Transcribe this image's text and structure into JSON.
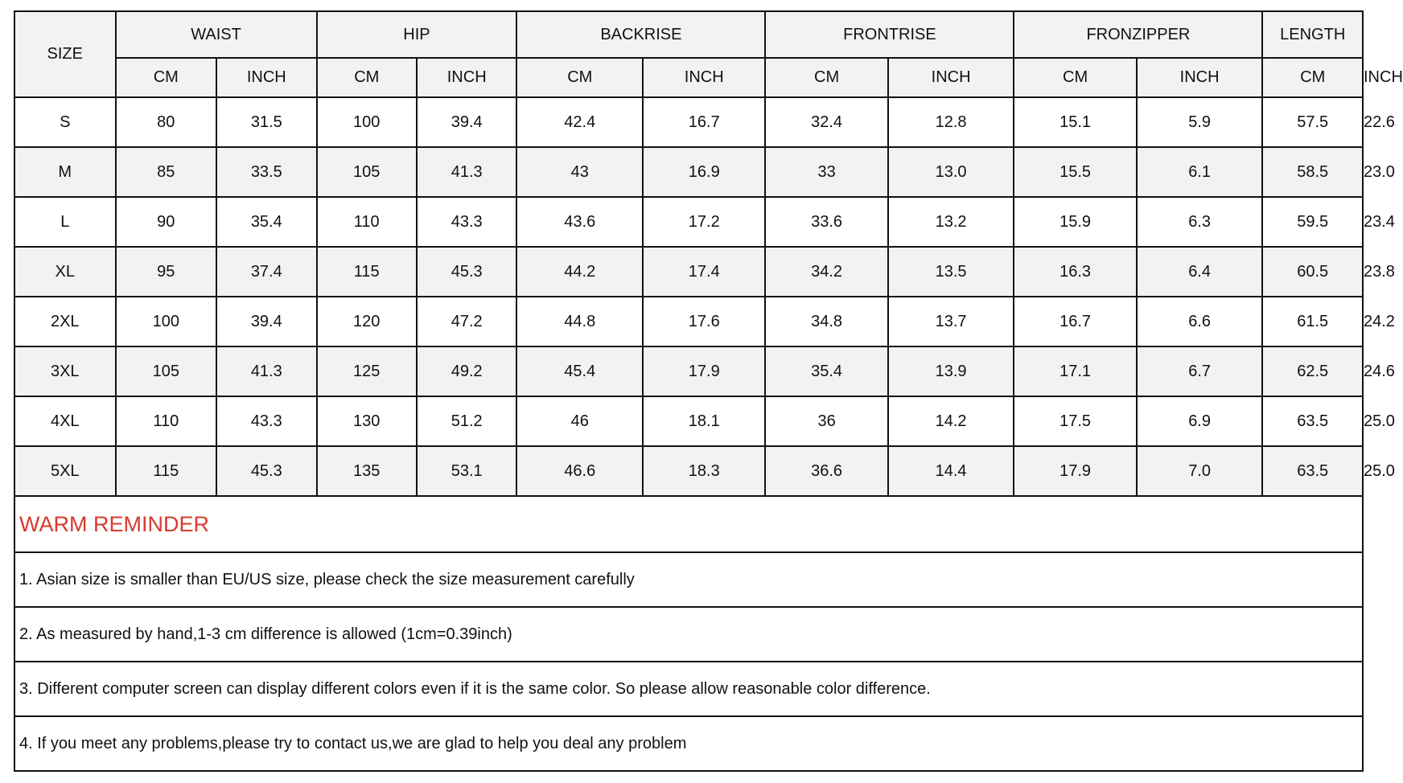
{
  "table": {
    "size_label": "SIZE",
    "groups": [
      "WAIST",
      "HIP",
      "BACKRISE",
      "FRONTRISE",
      "FRONZIPPER",
      "LENGTH"
    ],
    "units": [
      "CM",
      "INCH"
    ],
    "rows": [
      {
        "size": "S",
        "values": [
          "80",
          "31.5",
          "100",
          "39.4",
          "42.4",
          "16.7",
          "32.4",
          "12.8",
          "15.1",
          "5.9",
          "57.5",
          "22.6"
        ]
      },
      {
        "size": "M",
        "values": [
          "85",
          "33.5",
          "105",
          "41.3",
          "43",
          "16.9",
          "33",
          "13.0",
          "15.5",
          "6.1",
          "58.5",
          "23.0"
        ]
      },
      {
        "size": "L",
        "values": [
          "90",
          "35.4",
          "110",
          "43.3",
          "43.6",
          "17.2",
          "33.6",
          "13.2",
          "15.9",
          "6.3",
          "59.5",
          "23.4"
        ]
      },
      {
        "size": "XL",
        "values": [
          "95",
          "37.4",
          "115",
          "45.3",
          "44.2",
          "17.4",
          "34.2",
          "13.5",
          "16.3",
          "6.4",
          "60.5",
          "23.8"
        ]
      },
      {
        "size": "2XL",
        "values": [
          "100",
          "39.4",
          "120",
          "47.2",
          "44.8",
          "17.6",
          "34.8",
          "13.7",
          "16.7",
          "6.6",
          "61.5",
          "24.2"
        ]
      },
      {
        "size": "3XL",
        "values": [
          "105",
          "41.3",
          "125",
          "49.2",
          "45.4",
          "17.9",
          "35.4",
          "13.9",
          "17.1",
          "6.7",
          "62.5",
          "24.6"
        ]
      },
      {
        "size": "4XL",
        "values": [
          "110",
          "43.3",
          "130",
          "51.2",
          "46",
          "18.1",
          "36",
          "14.2",
          "17.5",
          "6.9",
          "63.5",
          "25.0"
        ]
      },
      {
        "size": "5XL",
        "values": [
          "115",
          "45.3",
          "135",
          "53.1",
          "46.6",
          "18.3",
          "36.6",
          "14.4",
          "17.9",
          "7.0",
          "63.5",
          "25.0"
        ]
      }
    ]
  },
  "reminder": {
    "title": "WARM REMINDER",
    "title_color": "#d9392e",
    "items": [
      "1. Asian size is smaller than EU/US size, please check the size measurement carefully",
      "2. As measured by hand,1-3 cm difference is allowed (1cm=0.39inch)",
      "3. Different computer screen can display different colors even if it is the same color. So please allow reasonable color difference.",
      "4. If you meet any problems,please try to contact us,we are glad to help you deal any problem"
    ]
  }
}
